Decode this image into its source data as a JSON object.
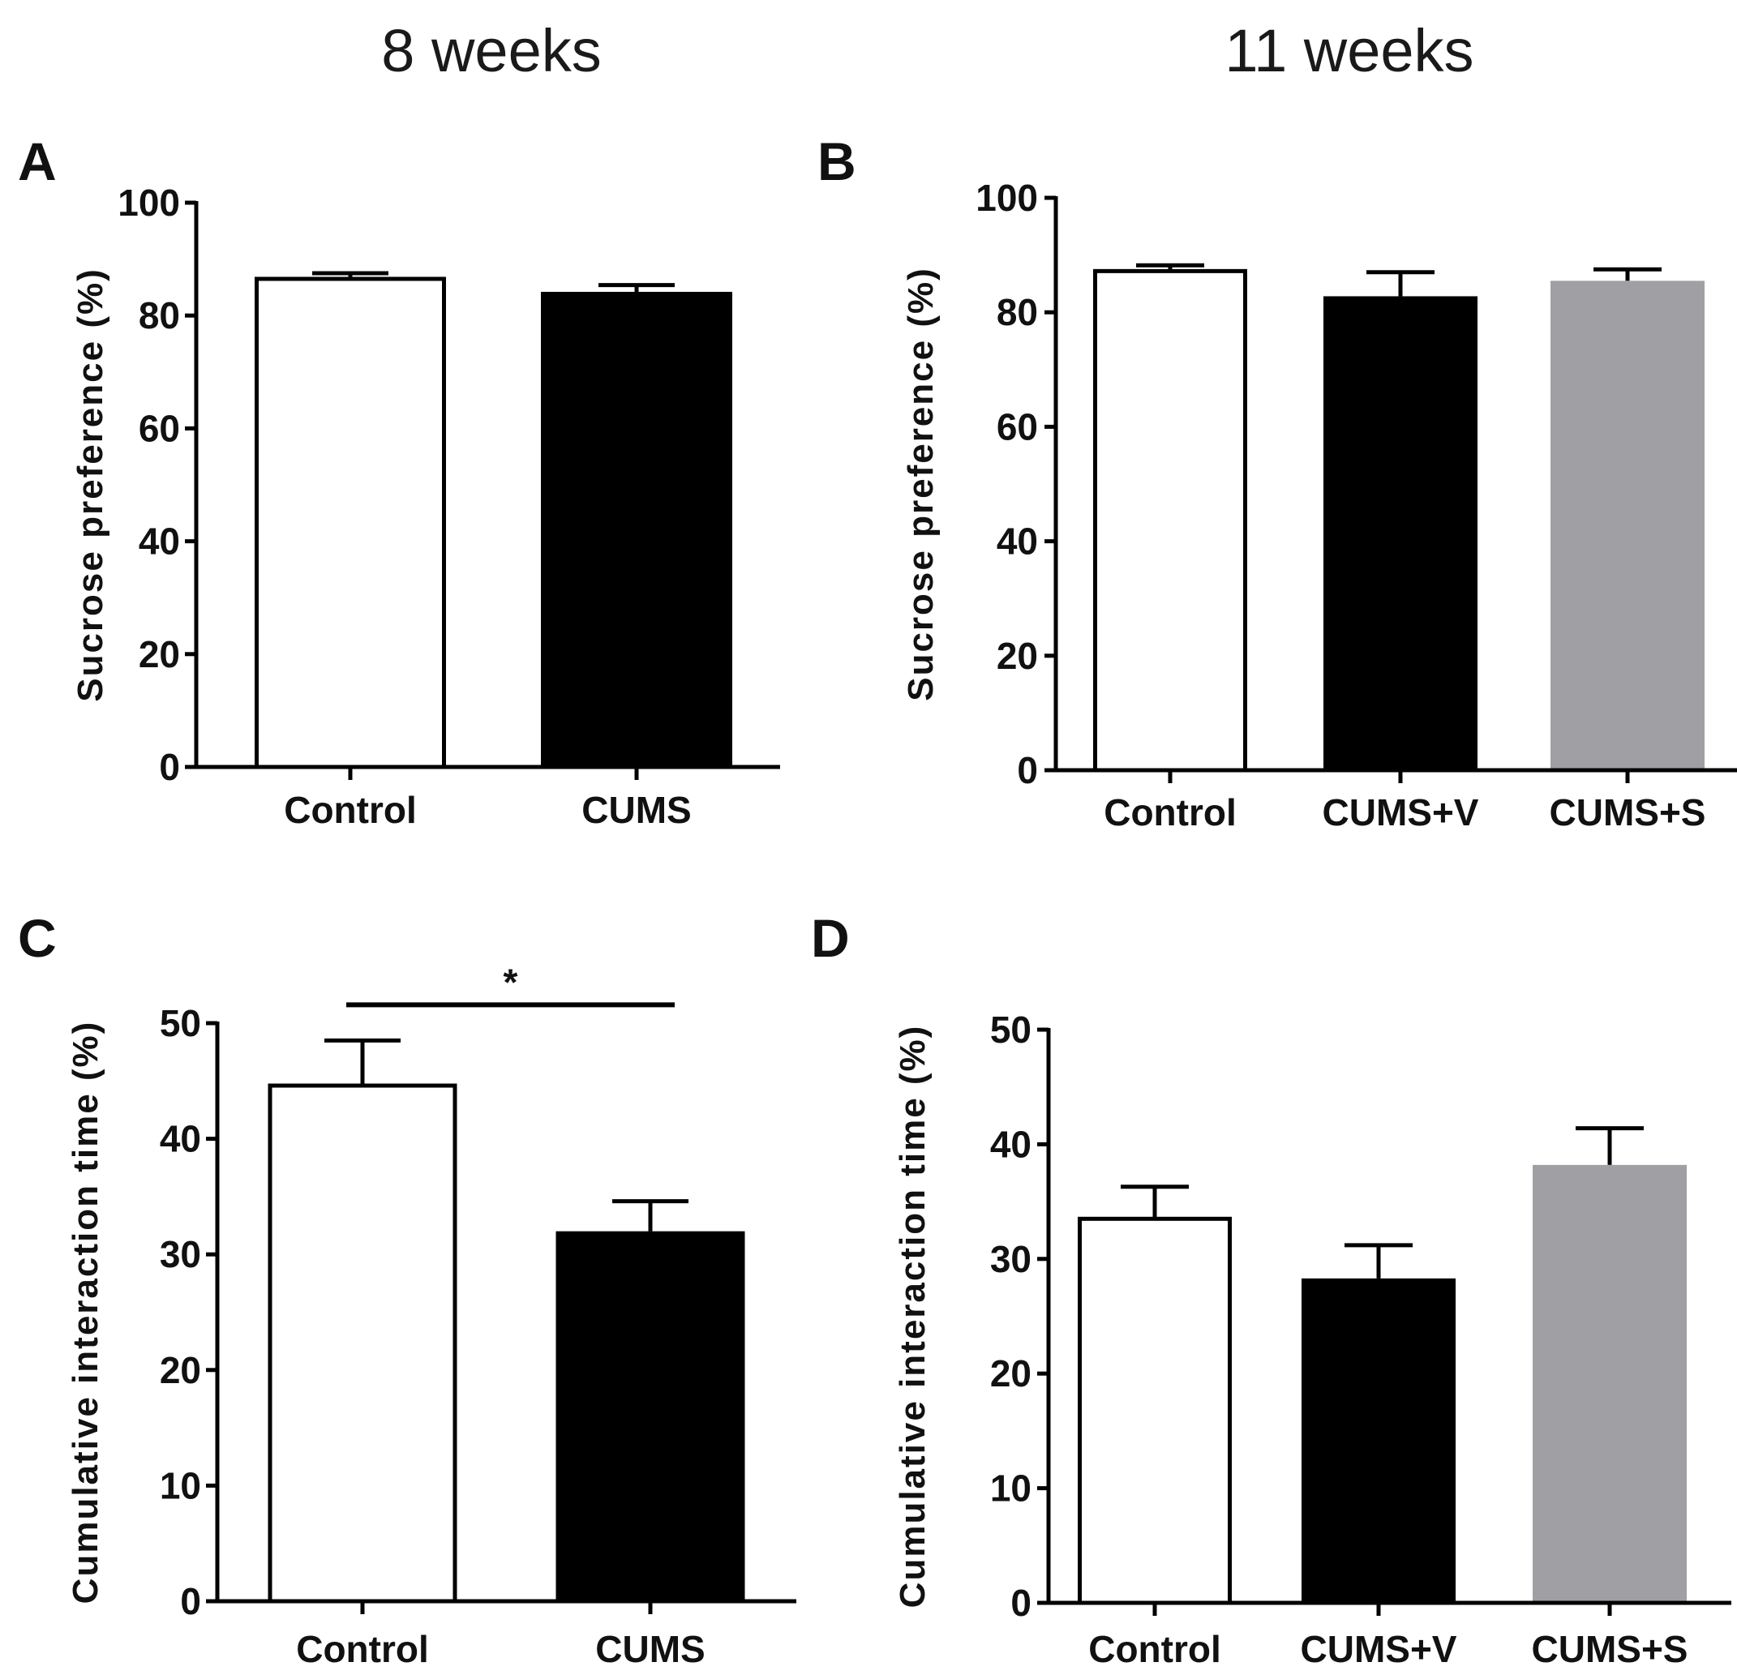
{
  "column_headers": [
    "8 weeks",
    "11 weeks"
  ],
  "colors": {
    "control": "#ffffff",
    "cums": "#000000",
    "cums_s": "#a0a0a4",
    "ink": "#000000"
  },
  "chart_data": [
    {
      "panel": "A",
      "type": "bar",
      "ylabel": "Sucrose preference (%)",
      "ylim": [
        0,
        100
      ],
      "yticks": [
        0,
        20,
        40,
        60,
        80,
        100
      ],
      "categories": [
        "Control",
        "CUMS"
      ],
      "values": [
        86.5,
        84.2
      ],
      "errors": [
        1.0,
        1.2
      ],
      "fill": [
        "control",
        "cums"
      ]
    },
    {
      "panel": "B",
      "type": "bar",
      "ylabel": "Sucrose preference (%)",
      "ylim": [
        0,
        100
      ],
      "yticks": [
        0,
        20,
        40,
        60,
        80,
        100
      ],
      "categories": [
        "Control",
        "CUMS+V",
        "CUMS+S"
      ],
      "values": [
        87.2,
        82.8,
        85.5
      ],
      "errors": [
        1.0,
        4.2,
        2.0
      ],
      "fill": [
        "control",
        "cums",
        "cums_s"
      ]
    },
    {
      "panel": "C",
      "type": "bar",
      "ylabel": "Cumulative interaction time (%)",
      "ylim": [
        0,
        50
      ],
      "yticks": [
        0,
        10,
        20,
        30,
        40,
        50
      ],
      "categories": [
        "Control",
        "CUMS"
      ],
      "values": [
        44.6,
        32.0
      ],
      "errors": [
        3.9,
        2.6
      ],
      "fill": [
        "control",
        "cums"
      ],
      "significance": {
        "label": "*",
        "between": [
          0,
          1
        ]
      }
    },
    {
      "panel": "D",
      "type": "bar",
      "ylabel": "Cumulative interaction time (%)",
      "ylim": [
        0,
        50
      ],
      "yticks": [
        0,
        10,
        20,
        30,
        40,
        50
      ],
      "categories": [
        "Control",
        "CUMS+V",
        "CUMS+S"
      ],
      "values": [
        33.5,
        28.3,
        38.2
      ],
      "errors": [
        2.8,
        2.9,
        3.2
      ],
      "fill": [
        "control",
        "cums",
        "cums_s"
      ]
    }
  ]
}
